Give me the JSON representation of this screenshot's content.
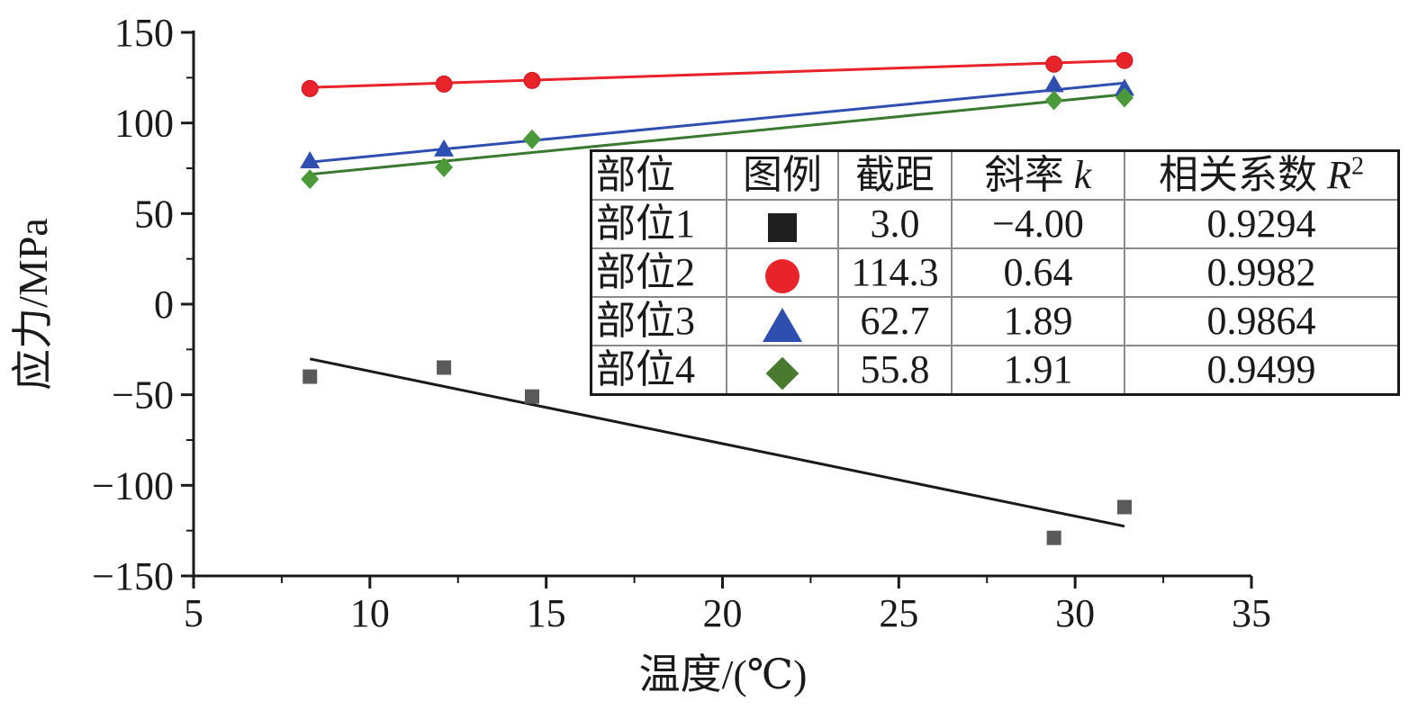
{
  "chart_data": {
    "type": "scatter",
    "xlabel": "温度/(℃)",
    "ylabel": "应力/MPa",
    "xlim": [
      5,
      35
    ],
    "ylim": [
      -150,
      150
    ],
    "xticks": [
      "5",
      "10",
      "15",
      "20",
      "25",
      "30",
      "35"
    ],
    "yticks": [
      "150",
      "100",
      "50",
      "0",
      "−50",
      "−100",
      "−150"
    ],
    "series": [
      {
        "name": "部位1",
        "marker": "square",
        "color": "#5a5a5a",
        "fit_color": "#1a1a1a",
        "points": [
          [
            8.3,
            -40
          ],
          [
            12.1,
            -35
          ],
          [
            14.6,
            -51
          ],
          [
            29.4,
            -129
          ],
          [
            31.4,
            -112
          ]
        ],
        "fit": {
          "intercept": 3.0,
          "slope": -4.0,
          "x_range": [
            8.3,
            31.4
          ]
        }
      },
      {
        "name": "部位2",
        "marker": "circle",
        "color": "#e8232a",
        "fit_color": "#e8232a",
        "points": [
          [
            8.3,
            119
          ],
          [
            12.1,
            121.5
          ],
          [
            14.6,
            123.5
          ],
          [
            29.4,
            132.5
          ],
          [
            31.4,
            134.5
          ]
        ],
        "fit": {
          "intercept": 114.3,
          "slope": 0.64,
          "x_range": [
            8.3,
            31.4
          ]
        }
      },
      {
        "name": "部位3",
        "marker": "triangle",
        "color": "#2f4fb0",
        "fit_color": "#2f4fb0",
        "points": [
          [
            8.3,
            79
          ],
          [
            12.1,
            85.5
          ],
          [
            29.4,
            121
          ],
          [
            31.4,
            119
          ]
        ],
        "fit": {
          "intercept": 62.7,
          "slope": 1.89,
          "x_range": [
            8.3,
            31.4
          ]
        }
      },
      {
        "name": "部位4",
        "marker": "diamond",
        "color": "#4a9a3a",
        "fit_color": "#3a7a30",
        "points": [
          [
            8.3,
            69
          ],
          [
            12.1,
            75.5
          ],
          [
            14.6,
            91
          ],
          [
            29.4,
            112.5
          ],
          [
            31.4,
            114
          ]
        ],
        "fit": {
          "intercept": 55.8,
          "slope": 1.91,
          "x_range": [
            8.3,
            31.4
          ]
        }
      }
    ],
    "legend_table": {
      "headers": [
        "部位",
        "图例",
        "截距",
        "斜率",
        "k",
        "相关系数",
        "R",
        "2"
      ],
      "rows": [
        {
          "part": "部位1",
          "intercept": "3.0",
          "slope": "−4.00",
          "r2": "0.9294"
        },
        {
          "part": "部位2",
          "intercept": "114.3",
          "slope": "0.64",
          "r2": "0.9982"
        },
        {
          "part": "部位3",
          "intercept": "62.7",
          "slope": "1.89",
          "r2": "0.9864"
        },
        {
          "part": "部位4",
          "intercept": "55.8",
          "slope": "1.91",
          "r2": "0.9499"
        }
      ]
    }
  }
}
